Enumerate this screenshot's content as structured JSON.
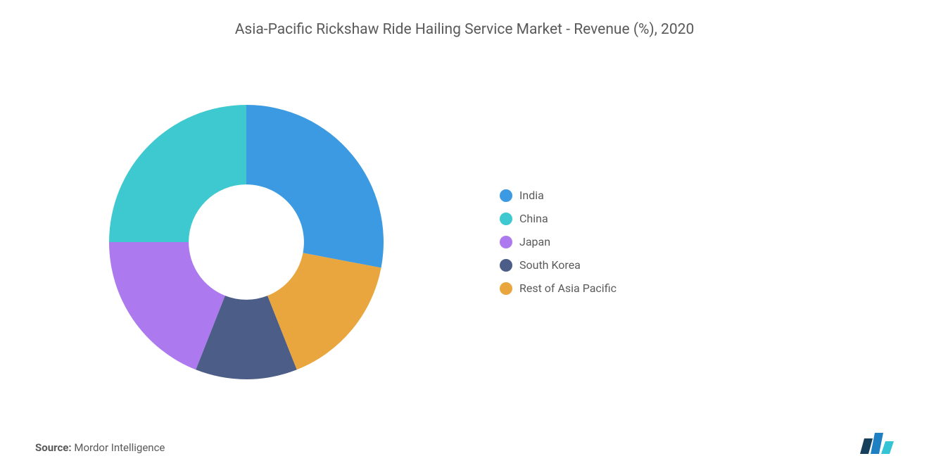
{
  "chart": {
    "type": "donut",
    "title": "Asia-Pacific Rickshaw Ride Hailing Service Market - Revenue (%), 2020",
    "title_fontsize": 21,
    "title_color": "#5a5a5a",
    "background_color": "#ffffff",
    "inner_radius_ratio": 0.42,
    "outer_radius": 195,
    "start_angle_deg": 0,
    "series": [
      {
        "label": "India",
        "value": 28,
        "color": "#3b9ae1"
      },
      {
        "label": "China",
        "value": 25,
        "color": "#3ec8cf"
      },
      {
        "label": "Japan",
        "value": 19,
        "color": "#ad79ef"
      },
      {
        "label": "South Korea",
        "value": 12,
        "color": "#4c5d87"
      },
      {
        "label": "Rest of Asia Pacific",
        "value": 16,
        "color": "#eaa63e"
      }
    ],
    "legend": {
      "position": "right",
      "fontsize": 16,
      "text_color": "#5a5a5a",
      "swatch_shape": "circle",
      "swatch_size": 18
    }
  },
  "source": {
    "prefix": "Source:",
    "text": "Mordor Intelligence",
    "fontsize": 15,
    "color": "#5a5a5a"
  },
  "logo": {
    "bars": [
      {
        "color": "#163f5c",
        "height": 22
      },
      {
        "color": "#1e7fc2",
        "height": 30
      },
      {
        "color": "#35c3d6",
        "height": 18
      }
    ]
  }
}
